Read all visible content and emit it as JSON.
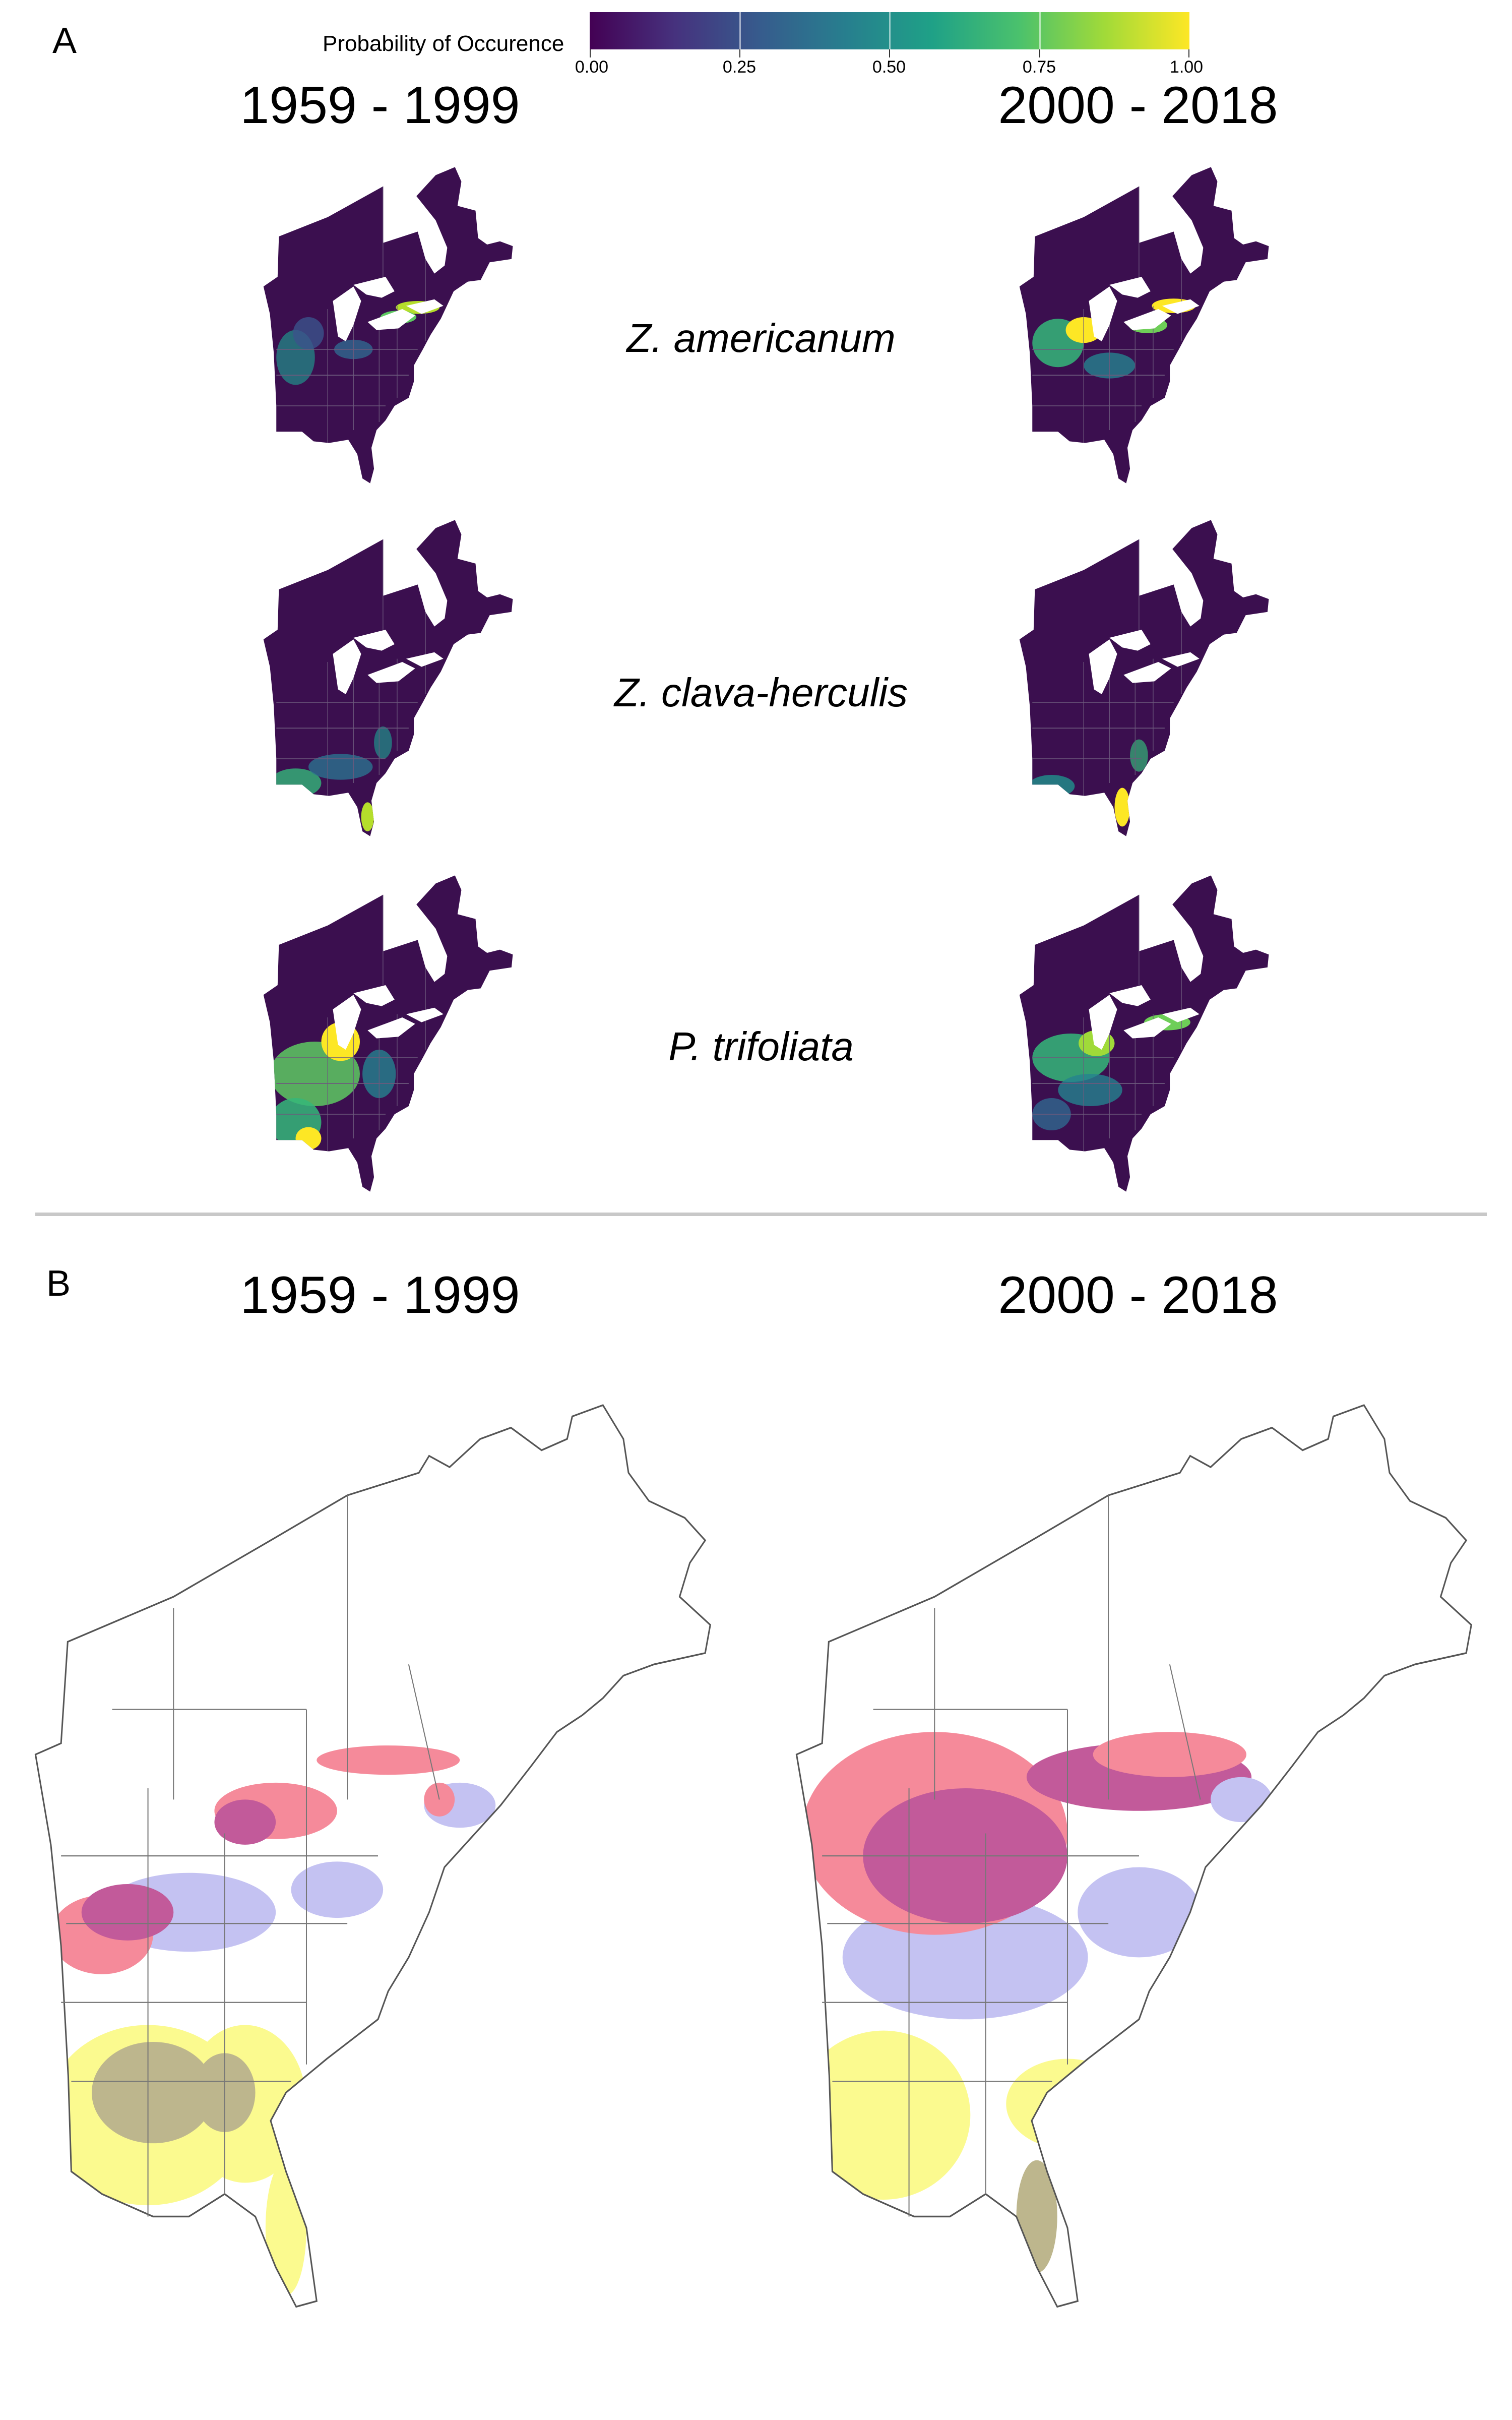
{
  "panel_a": {
    "letter": "A",
    "legend": {
      "title": "Probability of Occurence",
      "ticks": [
        "0.00",
        "0.25",
        "0.50",
        "0.75",
        "1.00"
      ],
      "colormap": [
        "#440154",
        "#46327e",
        "#365c8d",
        "#277f8e",
        "#1fa187",
        "#4ac16d",
        "#a0da39",
        "#fde725"
      ]
    },
    "periods": [
      "1959 - 1999",
      "2000 - 2018"
    ],
    "species": [
      "Z. americanum",
      "Z. clava-herculis",
      "P. trifoliata"
    ],
    "land_color": "#3b0f4f"
  },
  "panel_b": {
    "letter": "B",
    "periods": [
      "1959 - 1999",
      "2000 - 2018"
    ],
    "overlap_colors": {
      "pink": "#f58a9a",
      "magenta": "#c25a9a",
      "lavender": "#c4c2f2",
      "yellow": "#fbfa8f",
      "olive": "#bdb68d"
    }
  }
}
